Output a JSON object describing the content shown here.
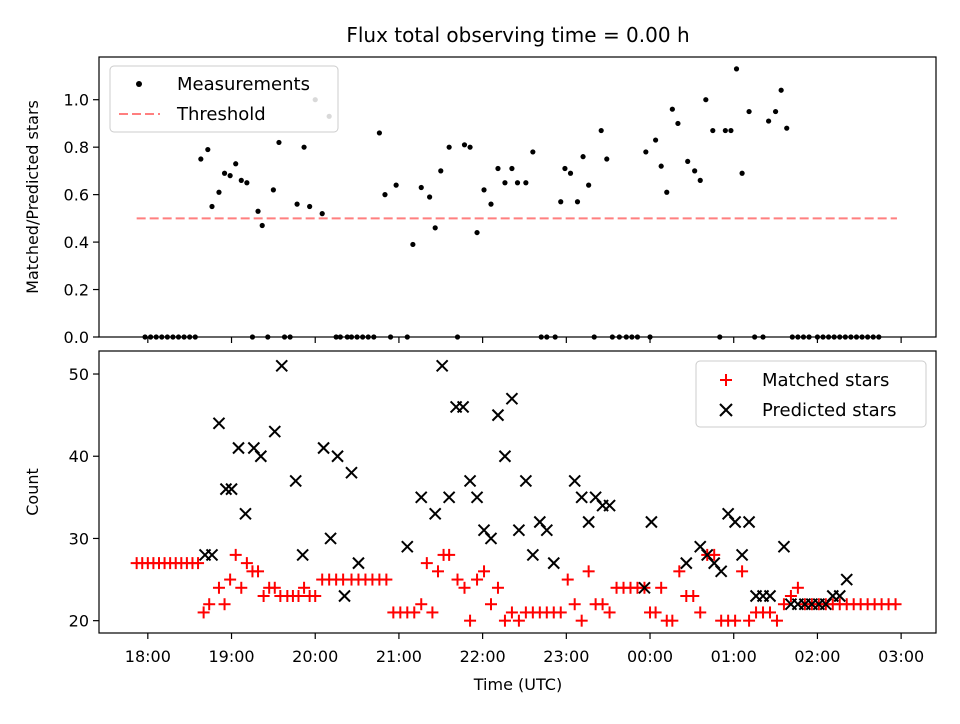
{
  "chart_data": [
    {
      "type": "scatter",
      "title": "Flux total observing time = 0.00 h",
      "xlabel": "",
      "ylabel": "Matched/Predicted stars",
      "ylim": [
        0,
        1.18
      ],
      "yticks": [
        "0.0",
        "0.2",
        "0.4",
        "0.6",
        "0.8",
        "1.0"
      ],
      "grid": false,
      "legend": "top-left",
      "series": [
        {
          "name": "Measurements",
          "color": "#000000",
          "x": [
            "17:58",
            "18:02",
            "18:06",
            "18:10",
            "18:14",
            "18:18",
            "18:22",
            "18:26",
            "18:30",
            "18:34",
            "18:38",
            "18:43",
            "18:46",
            "18:51",
            "18:55",
            "18:59",
            "19:03",
            "19:07",
            "19:11",
            "19:15",
            "19:19",
            "19:22",
            "19:26",
            "19:30",
            "19:34",
            "19:38",
            "19:42",
            "19:47",
            "19:52",
            "19:56",
            "20:00",
            "20:05",
            "20:10",
            "20:15",
            "20:18",
            "20:23",
            "20:26",
            "20:30",
            "20:34",
            "20:38",
            "20:42",
            "20:46",
            "20:50",
            "20:54",
            "20:58",
            "21:06",
            "21:10",
            "21:16",
            "21:22",
            "21:26",
            "21:30",
            "21:36",
            "21:42",
            "21:47",
            "21:51",
            "21:56",
            "22:01",
            "22:06",
            "22:11",
            "22:16",
            "22:21",
            "22:25",
            "22:31",
            "22:36",
            "22:42",
            "22:46",
            "22:52",
            "22:56",
            "22:59",
            "23:03",
            "23:08",
            "23:12",
            "23:16",
            "23:20",
            "23:25",
            "23:29",
            "23:33",
            "23:38",
            "23:43",
            "23:47",
            "23:51",
            "23:57",
            "24:00",
            "24:04",
            "24:08",
            "24:12",
            "24:16",
            "24:20",
            "24:27",
            "24:32",
            "24:36",
            "24:40",
            "24:45",
            "24:50",
            "24:54",
            "24:58",
            "25:02",
            "25:06",
            "25:11",
            "25:15",
            "25:21",
            "25:25",
            "25:30",
            "25:34",
            "25:38",
            "25:42",
            "25:46",
            "25:50",
            "25:54",
            "26:00",
            "26:04",
            "26:08",
            "26:12",
            "26:16",
            "26:20",
            "26:24",
            "26:28",
            "26:32",
            "26:36",
            "26:40",
            "26:44"
          ],
          "y": [
            0,
            0,
            0,
            0,
            0,
            0,
            0,
            0,
            0,
            0,
            0.75,
            0.79,
            0.55,
            0.61,
            0.69,
            0.68,
            0.73,
            0.66,
            0.65,
            0,
            0.53,
            0.47,
            0,
            0.62,
            0.82,
            0,
            0,
            0.56,
            0.8,
            0.55,
            1.0,
            0.52,
            0.93,
            0,
            0,
            0,
            0,
            0,
            0,
            0,
            0,
            0.86,
            0.6,
            0,
            0.64,
            0,
            0.39,
            0.63,
            0.59,
            0.46,
            0.7,
            0.8,
            0,
            0.81,
            0.8,
            0.44,
            0.62,
            0.56,
            0.71,
            0.65,
            0.71,
            0.65,
            0.65,
            0.78,
            0,
            0,
            0,
            0.57,
            0.71,
            0.69,
            0.57,
            0.76,
            0.64,
            0,
            0.87,
            0.75,
            0,
            0,
            0,
            0,
            0,
            0.78,
            0,
            0.83,
            0.72,
            0.61,
            0.96,
            0.9,
            0.74,
            0.7,
            0.66,
            1.0,
            0.87,
            0,
            0.87,
            0.87,
            1.13,
            0.69,
            0.95,
            0,
            0,
            0.91,
            0.95,
            1.04,
            0.88,
            0,
            0,
            0,
            0,
            0,
            0,
            0,
            0,
            0,
            0,
            0,
            0,
            0,
            0,
            0,
            0
          ]
        },
        {
          "name": "Threshold",
          "color": "#ff7f7f",
          "style": "dashed",
          "x": [
            "17:52",
            "26:57"
          ],
          "y": [
            0.5,
            0.5
          ]
        }
      ]
    },
    {
      "type": "scatter",
      "title": "",
      "xlabel": "Time (UTC)",
      "ylabel": "Count",
      "ylim": [
        18.5,
        52.8
      ],
      "yticks": [
        "20",
        "30",
        "40",
        "50"
      ],
      "xticks": [
        "18:00",
        "19:00",
        "20:00",
        "21:00",
        "22:00",
        "23:00",
        "00:00",
        "01:00",
        "02:00",
        "03:00"
      ],
      "grid": false,
      "legend": "top-right",
      "series": [
        {
          "name": "Matched stars",
          "color": "#ff0000",
          "marker": "+",
          "x": [
            "17:52",
            "17:56",
            "18:00",
            "18:04",
            "18:08",
            "18:12",
            "18:16",
            "18:20",
            "18:24",
            "18:28",
            "18:32",
            "18:36",
            "18:40",
            "18:44",
            "18:51",
            "18:55",
            "18:59",
            "19:03",
            "19:07",
            "19:11",
            "19:15",
            "19:19",
            "19:23",
            "19:27",
            "19:31",
            "19:35",
            "19:40",
            "19:44",
            "19:48",
            "19:52",
            "19:56",
            "20:00",
            "20:05",
            "20:10",
            "20:15",
            "20:20",
            "20:26",
            "20:31",
            "20:36",
            "20:41",
            "20:46",
            "20:51",
            "20:56",
            "21:01",
            "21:06",
            "21:11",
            "21:16",
            "21:20",
            "21:24",
            "21:28",
            "21:32",
            "21:36",
            "21:42",
            "21:47",
            "21:51",
            "21:56",
            "22:01",
            "22:06",
            "22:11",
            "22:16",
            "22:21",
            "22:26",
            "22:31",
            "22:36",
            "22:41",
            "22:46",
            "22:51",
            "22:56",
            "23:01",
            "23:06",
            "23:11",
            "23:16",
            "23:21",
            "23:26",
            "23:31",
            "23:36",
            "23:41",
            "23:46",
            "23:51",
            "23:56",
            "24:00",
            "24:04",
            "24:08",
            "24:12",
            "24:16",
            "24:21",
            "24:26",
            "24:31",
            "24:36",
            "24:41",
            "24:46",
            "24:51",
            "24:56",
            "25:01",
            "25:06",
            "25:11",
            "25:16",
            "25:21",
            "25:26",
            "25:31",
            "25:36",
            "25:41",
            "25:46",
            "25:51",
            "25:56",
            "26:01",
            "26:06",
            "26:11",
            "26:16",
            "26:21",
            "26:26",
            "26:31",
            "26:36",
            "26:41",
            "26:46",
            "26:51",
            "26:56"
          ],
          "y": [
            27,
            27,
            27,
            27,
            27,
            27,
            27,
            27,
            27,
            27,
            27,
            27,
            21,
            22,
            24,
            22,
            25,
            28,
            24,
            27,
            26,
            26,
            23,
            24,
            24,
            23,
            23,
            23,
            23,
            24,
            23,
            23,
            25,
            25,
            25,
            25,
            25,
            25,
            25,
            25,
            25,
            25,
            21,
            21,
            21,
            21,
            22,
            27,
            21,
            26,
            28,
            28,
            25,
            24,
            20,
            25,
            26,
            22,
            24,
            20,
            21,
            20,
            21,
            21,
            21,
            21,
            21,
            21,
            25,
            22,
            20,
            26,
            22,
            22,
            21,
            24,
            24,
            24,
            24,
            24,
            21,
            21,
            24,
            20,
            20,
            26,
            23,
            23,
            21,
            28,
            28,
            20,
            20,
            20,
            26,
            20,
            21,
            21,
            21,
            20,
            22,
            23,
            24,
            22,
            22,
            22,
            22,
            22,
            22,
            22,
            22,
            22,
            22,
            22,
            22,
            22,
            22
          ]
        },
        {
          "name": "Predicted stars",
          "color": "#000000",
          "marker": "x",
          "x": [
            "18:41",
            "18:46",
            "18:51",
            "18:56",
            "19:00",
            "19:05",
            "19:10",
            "19:16",
            "19:21",
            "19:31",
            "19:36",
            "19:46",
            "19:51",
            "20:06",
            "20:11",
            "20:16",
            "20:21",
            "20:26",
            "20:31",
            "21:06",
            "21:16",
            "21:26",
            "21:31",
            "21:36",
            "21:41",
            "21:46",
            "21:51",
            "21:56",
            "22:01",
            "22:06",
            "22:11",
            "22:16",
            "22:21",
            "22:26",
            "22:31",
            "22:36",
            "22:41",
            "22:46",
            "22:51",
            "23:06",
            "23:11",
            "23:16",
            "23:21",
            "23:26",
            "23:31",
            "23:56",
            "24:01",
            "24:26",
            "24:36",
            "24:41",
            "24:46",
            "24:51",
            "24:56",
            "25:01",
            "25:06",
            "25:11",
            "25:16",
            "25:21",
            "25:26",
            "25:36",
            "25:41",
            "25:46",
            "25:51",
            "25:56",
            "26:01",
            "26:06",
            "26:11",
            "26:16",
            "26:21"
          ],
          "y": [
            28,
            28,
            44,
            36,
            36,
            41,
            33,
            41,
            40,
            43,
            51,
            37,
            28,
            41,
            30,
            40,
            23,
            38,
            27,
            29,
            35,
            33,
            51,
            35,
            46,
            46,
            37,
            35,
            31,
            30,
            45,
            40,
            47,
            31,
            37,
            28,
            32,
            31,
            27,
            37,
            35,
            32,
            35,
            34,
            34,
            24,
            32,
            27,
            29,
            28,
            27,
            26,
            33,
            32,
            28,
            32,
            23,
            23,
            23,
            29,
            22,
            22,
            22,
            22,
            22,
            22,
            23,
            23,
            25
          ]
        }
      ]
    }
  ],
  "legend_top": {
    "measurements_label": "Measurements",
    "threshold_label": "Threshold"
  },
  "legend_bottom": {
    "matched_label": "Matched stars",
    "predicted_label": "Predicted stars"
  }
}
